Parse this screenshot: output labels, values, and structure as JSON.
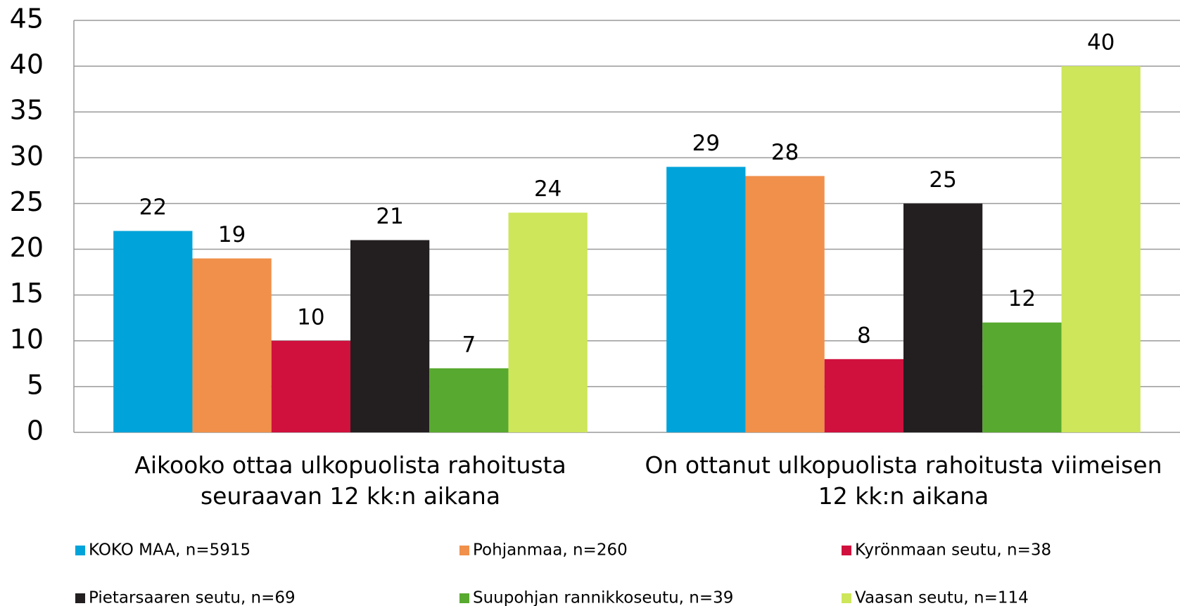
{
  "chart_data": {
    "type": "bar",
    "categories": [
      "Aikooko ottaa ulkopuolista rahoitusta seuraavan 12 kk:n aikana",
      "On ottanut ulkopuolista rahoitusta viimeisen 12 kk:n aikana"
    ],
    "series": [
      {
        "name": "KOKO MAA, n=5915",
        "color": "#00a3da",
        "values": [
          22,
          29
        ]
      },
      {
        "name": "Pohjanmaa, n=260",
        "color": "#f0904a",
        "values": [
          19,
          28
        ]
      },
      {
        "name": "Kyrönmaan seutu, n=38",
        "color": "#d0103d",
        "values": [
          10,
          8
        ]
      },
      {
        "name": "Pietarsaaren seutu, n=69",
        "color": "#231f20",
        "values": [
          21,
          25
        ]
      },
      {
        "name": "Suupohjan rannikkoseutu, n=39",
        "color": "#58a92f",
        "values": [
          7,
          12
        ]
      },
      {
        "name": "Vaasan seutu, n=114",
        "color": "#cde65a",
        "values": [
          24,
          40
        ]
      }
    ],
    "ylim": [
      0,
      45
    ],
    "yticks": [
      0,
      5,
      10,
      15,
      20,
      25,
      30,
      35,
      40,
      45
    ],
    "grid": true
  }
}
